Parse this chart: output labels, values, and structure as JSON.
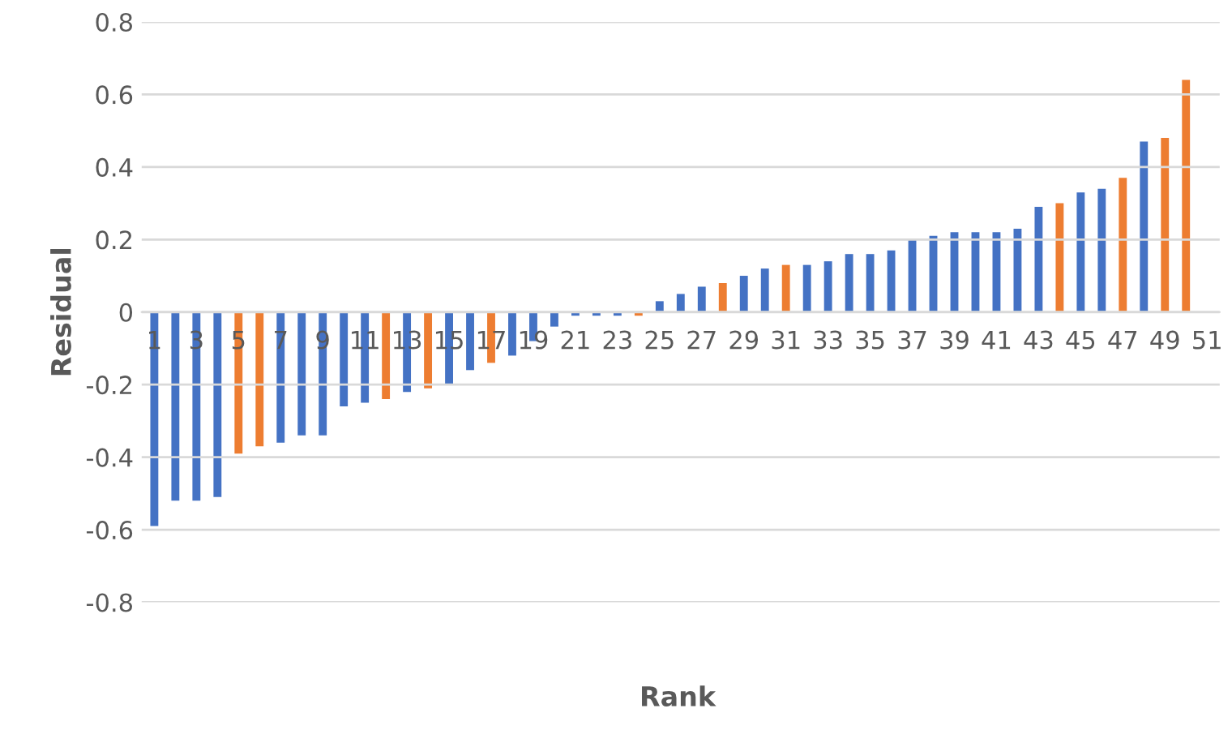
{
  "chart_data": {
    "type": "bar",
    "xlabel": "Rank",
    "ylabel": "Residual",
    "categories": [
      "1",
      null,
      "3",
      null,
      "5",
      null,
      "7",
      null,
      "9",
      null,
      "11",
      null,
      "13",
      null,
      "15",
      null,
      "17",
      null,
      "19",
      null,
      "21",
      null,
      "23",
      null,
      "25",
      null,
      "27",
      null,
      "29",
      null,
      "31",
      null,
      "33",
      null,
      "35",
      null,
      "37",
      null,
      "39",
      null,
      "41",
      null,
      "43",
      null,
      "45",
      null,
      "47",
      null,
      "49",
      null,
      "51"
    ],
    "values": [
      -0.59,
      -0.52,
      -0.52,
      -0.51,
      -0.39,
      -0.37,
      -0.36,
      -0.34,
      -0.34,
      -0.26,
      -0.25,
      -0.24,
      -0.22,
      -0.21,
      -0.2,
      -0.16,
      -0.14,
      -0.12,
      -0.08,
      -0.04,
      -0.01,
      -0.01,
      -0.01,
      -0.01,
      0.03,
      0.05,
      0.07,
      0.08,
      0.1,
      0.12,
      0.13,
      0.13,
      0.14,
      0.16,
      0.16,
      0.17,
      0.2,
      0.21,
      0.22,
      0.22,
      0.22,
      0.23,
      0.29,
      0.3,
      0.33,
      0.34,
      0.37,
      0.47,
      0.48,
      0.64,
      null
    ],
    "colors": [
      "#4472c4",
      "#4472c4",
      "#4472c4",
      "#4472c4",
      "#ed7d31",
      "#ed7d31",
      "#4472c4",
      "#4472c4",
      "#4472c4",
      "#4472c4",
      "#4472c4",
      "#ed7d31",
      "#4472c4",
      "#ed7d31",
      "#4472c4",
      "#4472c4",
      "#ed7d31",
      "#4472c4",
      "#4472c4",
      "#4472c4",
      "#4472c4",
      "#4472c4",
      "#4472c4",
      "#ed7d31",
      "#4472c4",
      "#4472c4",
      "#4472c4",
      "#ed7d31",
      "#4472c4",
      "#4472c4",
      "#ed7d31",
      "#4472c4",
      "#4472c4",
      "#4472c4",
      "#4472c4",
      "#4472c4",
      "#4472c4",
      "#4472c4",
      "#4472c4",
      "#4472c4",
      "#4472c4",
      "#4472c4",
      "#4472c4",
      "#ed7d31",
      "#4472c4",
      "#4472c4",
      "#ed7d31",
      "#4472c4",
      "#ed7d31",
      "#ed7d31",
      "#4472c4"
    ],
    "ylim": [
      -0.8,
      0.8
    ],
    "yticks": [
      -0.8,
      -0.6,
      -0.4,
      -0.2,
      0,
      0.2,
      0.4,
      0.6,
      0.8
    ],
    "grid": "y"
  }
}
